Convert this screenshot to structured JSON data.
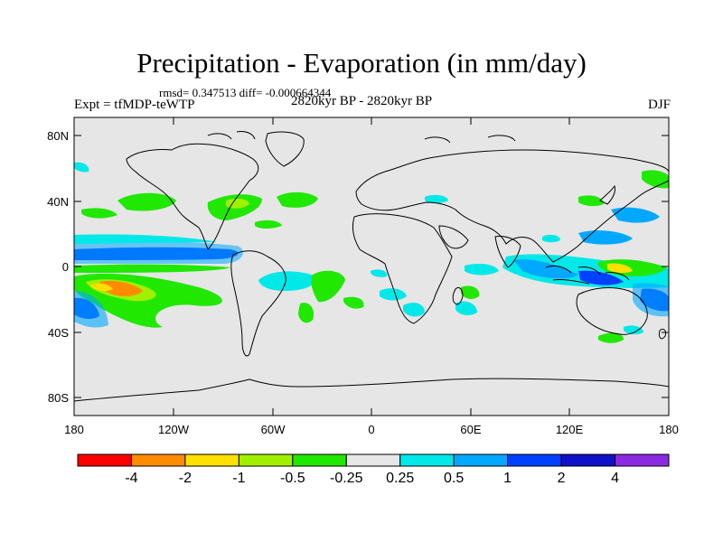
{
  "header": {
    "title": "Precipitation - Evaporation (in mm/day)",
    "stats": "rmsd= 0.347513 diff= -0.000664344",
    "experiment": "Expt = tfMDP-teWTP",
    "period": "2820kyr BP - 2820kyr BP",
    "season": "DJF"
  },
  "axes": {
    "lat_ticks": [
      "80N",
      "40N",
      "0",
      "40S",
      "80S"
    ],
    "lon_ticks": [
      "180",
      "120W",
      "60W",
      "0",
      "60E",
      "120E",
      "180"
    ]
  },
  "colorbar": {
    "labels": [
      "-4",
      "-2",
      "-1",
      "-0.5",
      "-0.25",
      "0.25",
      "0.5",
      "1",
      "2",
      "4"
    ],
    "colors": [
      "#ff0000",
      "#ff8c00",
      "#ffe000",
      "#a0f000",
      "#20e800",
      "#e6e6e6",
      "#00e8e8",
      "#00a8ff",
      "#0040ff",
      "#1010c8",
      "#8a2be2"
    ]
  },
  "map_colors": {
    "background": "#e6e6e6",
    "coast": "#000000"
  }
}
